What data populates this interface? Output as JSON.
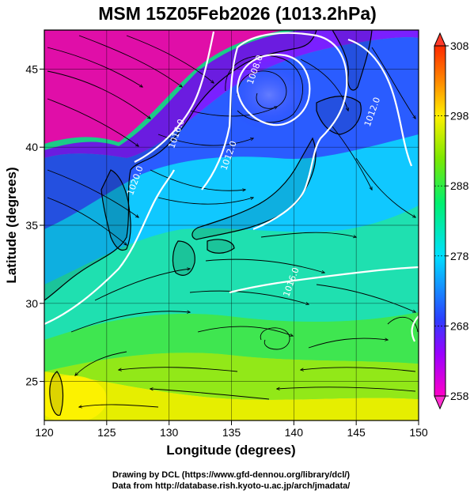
{
  "title": "MSM 15Z05Feb2026 (1013.2hPa)",
  "xlabel": "Longitude (degrees)",
  "ylabel": "Latitude  (degrees)",
  "credits": [
    "Drawing by DCL (https://www.gfd-dennou.org/library/dcl/)",
    "Data from http://database.rish.kyoto-u.ac.jp/arch/jmadata/"
  ],
  "chart_data": {
    "type": "heatmap",
    "xlim": [
      120,
      150
    ],
    "ylim": [
      22.5,
      47.5
    ],
    "xticks": [
      120,
      125,
      130,
      135,
      140,
      145,
      150
    ],
    "yticks": [
      25,
      30,
      35,
      40,
      45
    ],
    "grid": true,
    "colorbar": {
      "min": 258,
      "max": 308,
      "ticks": [
        258,
        268,
        278,
        288,
        298,
        308
      ],
      "colors": [
        "#ff00c8",
        "#9b00ff",
        "#2a3fff",
        "#00e0ff",
        "#00f070",
        "#7de800",
        "#fff000",
        "#ff8800",
        "#ff2a00"
      ],
      "placement": "right"
    },
    "isobar_labels": [
      {
        "text": "1020.0",
        "lon": 127.5,
        "lat": 37.8
      },
      {
        "text": "1016.0",
        "lon": 130.8,
        "lat": 40.8
      },
      {
        "text": "1012.0",
        "lon": 135.0,
        "lat": 39.4
      },
      {
        "text": "1008.0",
        "lon": 137.1,
        "lat": 44.9
      },
      {
        "text": "1012.0",
        "lon": 146.5,
        "lat": 42.2
      },
      {
        "text": "1016.0",
        "lon": 140.0,
        "lat": 31.3
      }
    ]
  }
}
